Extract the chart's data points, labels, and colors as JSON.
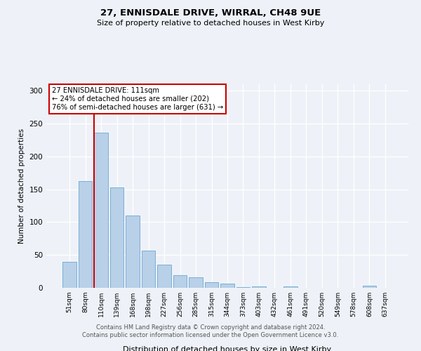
{
  "title": "27, ENNISDALE DRIVE, WIRRAL, CH48 9UE",
  "subtitle": "Size of property relative to detached houses in West Kirby",
  "xlabel": "Distribution of detached houses by size in West Kirby",
  "ylabel": "Number of detached properties",
  "bar_labels": [
    "51sqm",
    "80sqm",
    "110sqm",
    "139sqm",
    "168sqm",
    "198sqm",
    "227sqm",
    "256sqm",
    "285sqm",
    "315sqm",
    "344sqm",
    "373sqm",
    "403sqm",
    "432sqm",
    "461sqm",
    "491sqm",
    "520sqm",
    "549sqm",
    "578sqm",
    "608sqm",
    "637sqm"
  ],
  "bar_values": [
    40,
    162,
    236,
    153,
    110,
    57,
    35,
    19,
    16,
    9,
    6,
    1,
    2,
    0,
    2,
    0,
    0,
    0,
    0,
    3,
    0
  ],
  "bar_color": "#b8d0e8",
  "bar_edge_color": "#7aafd4",
  "marker_index": 2,
  "vline_color": "#cc0000",
  "annotation_title": "27 ENNISDALE DRIVE: 111sqm",
  "annotation_line1": "← 24% of detached houses are smaller (202)",
  "annotation_line2": "76% of semi-detached houses are larger (631) →",
  "annotation_box_color": "#ffffff",
  "annotation_box_edge": "#cc0000",
  "ylim": [
    0,
    310
  ],
  "yticks": [
    0,
    50,
    100,
    150,
    200,
    250,
    300
  ],
  "footer1": "Contains HM Land Registry data © Crown copyright and database right 2024.",
  "footer2": "Contains public sector information licensed under the Open Government Licence v3.0.",
  "bg_color": "#eef2f8",
  "plot_bg_color": "#eef2f8"
}
